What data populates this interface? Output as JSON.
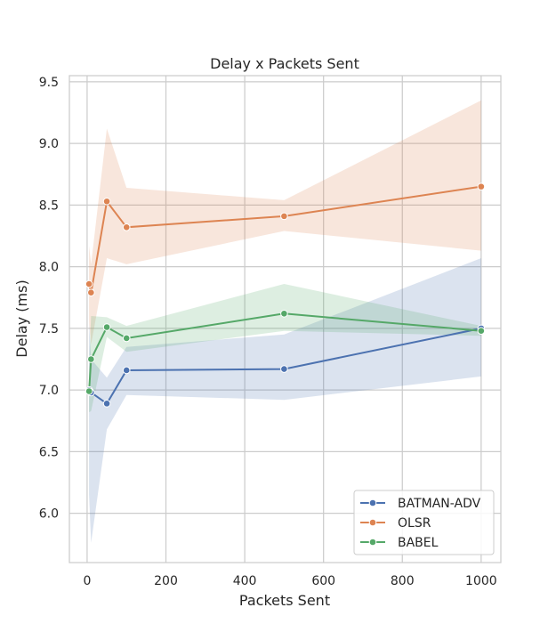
{
  "chart_data": {
    "type": "line",
    "title": "Delay x Packets Sent",
    "xlabel": "Packets Sent",
    "ylabel": "Delay (ms)",
    "xlim": [
      -45,
      1050
    ],
    "ylim": [
      5.6,
      9.55
    ],
    "x_ticks": [
      0,
      200,
      400,
      600,
      800,
      1000
    ],
    "y_ticks": [
      6.0,
      6.5,
      7.0,
      7.5,
      8.0,
      8.5,
      9.0,
      9.5
    ],
    "x_tick_labels": [
      "0",
      "200",
      "400",
      "600",
      "800",
      "1000"
    ],
    "y_tick_labels": [
      "6.0",
      "6.5",
      "7.0",
      "7.5",
      "8.0",
      "8.5",
      "9.0",
      "9.5"
    ],
    "grid": true,
    "legend_position": "lower right",
    "series": [
      {
        "name": "BATMAN-ADV",
        "color": "#4c72b0",
        "x": [
          5,
          10,
          50,
          100,
          500,
          1000
        ],
        "y": [
          7.0,
          6.98,
          6.89,
          7.16,
          7.17,
          7.5
        ],
        "ci_lower": [
          6.15,
          5.76,
          6.68,
          6.96,
          6.92,
          7.11
        ],
        "ci_upper": [
          7.55,
          7.25,
          7.1,
          7.35,
          7.45,
          8.07
        ]
      },
      {
        "name": "OLSR",
        "color": "#dd8452",
        "x": [
          5,
          10,
          50,
          100,
          500,
          1000
        ],
        "y": [
          7.86,
          7.79,
          8.53,
          8.32,
          8.41,
          8.65
        ],
        "ci_lower": [
          7.55,
          7.37,
          8.07,
          8.02,
          8.29,
          8.13
        ],
        "ci_upper": [
          8.17,
          8.02,
          9.12,
          8.64,
          8.54,
          9.35
        ]
      },
      {
        "name": "BABEL",
        "color": "#55a868",
        "x": [
          5,
          10,
          50,
          100,
          500,
          1000
        ],
        "y": [
          6.99,
          7.25,
          7.51,
          7.42,
          7.62,
          7.48
        ],
        "ci_lower": [
          6.82,
          6.83,
          7.43,
          7.31,
          7.48,
          7.44
        ],
        "ci_upper": [
          7.21,
          7.6,
          7.59,
          7.52,
          7.86,
          7.52
        ]
      }
    ]
  }
}
